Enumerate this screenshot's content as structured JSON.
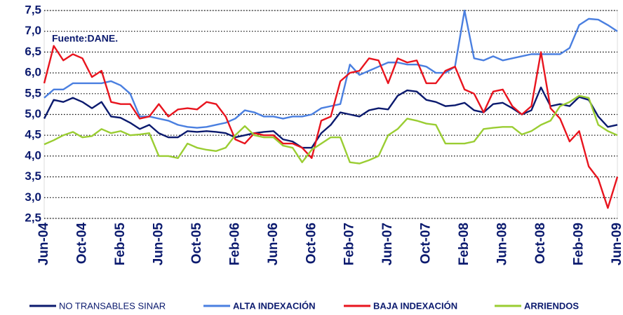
{
  "chart_data": {
    "type": "line",
    "annotation": "Fuente:DANE.",
    "categories": [
      "Jun-04",
      null,
      null,
      null,
      "Oct-04",
      null,
      null,
      null,
      "Feb-05",
      null,
      null,
      null,
      "Jun-05",
      null,
      null,
      null,
      "Oct-05",
      null,
      null,
      null,
      "Feb-06",
      null,
      null,
      null,
      "Jun-06",
      null,
      null,
      null,
      "Oct-06",
      null,
      null,
      null,
      "Feb-07",
      null,
      null,
      null,
      "Jun-07",
      null,
      null,
      null,
      "Oct-07",
      null,
      null,
      null,
      "Feb-08",
      null,
      null,
      null,
      "Jun-08",
      null,
      null,
      null,
      "Oct-08",
      null,
      null,
      null,
      "Feb-09",
      null,
      null,
      null,
      "Jun-09"
    ],
    "series": [
      {
        "name": "NO TRANSABLES SINAR",
        "color": "#0b1a6e",
        "values": [
          4.9,
          5.35,
          5.3,
          5.4,
          5.3,
          5.15,
          5.3,
          4.95,
          4.92,
          4.8,
          4.65,
          4.75,
          4.55,
          4.45,
          4.45,
          4.6,
          4.58,
          4.6,
          4.58,
          4.55,
          4.45,
          4.5,
          4.55,
          4.58,
          4.6,
          4.4,
          4.35,
          4.2,
          4.2,
          4.55,
          4.75,
          5.05,
          5.0,
          4.95,
          5.1,
          5.15,
          5.12,
          5.45,
          5.58,
          5.55,
          5.35,
          5.3,
          5.2,
          5.22,
          5.28,
          5.1,
          5.05,
          5.25,
          5.28,
          5.15,
          5.0,
          5.1,
          5.65,
          5.2,
          5.25,
          5.2,
          5.42,
          5.35,
          4.95,
          4.7,
          4.75
        ]
      },
      {
        "name": "ALTA INDEXACIÓN",
        "color": "#4a7fe0",
        "values": [
          5.4,
          5.6,
          5.6,
          5.75,
          5.75,
          5.75,
          5.75,
          5.8,
          5.7,
          5.5,
          4.95,
          4.95,
          4.9,
          4.85,
          4.75,
          4.7,
          4.68,
          4.7,
          4.75,
          4.8,
          4.9,
          5.1,
          5.05,
          4.95,
          4.95,
          4.9,
          4.95,
          4.95,
          5.0,
          5.15,
          5.2,
          5.25,
          6.2,
          5.95,
          6.05,
          6.15,
          6.25,
          6.25,
          6.2,
          6.2,
          6.15,
          6.0,
          6.0,
          6.15,
          7.5,
          6.35,
          6.3,
          6.4,
          6.3,
          6.35,
          6.4,
          6.45,
          6.45,
          6.45,
          6.45,
          6.6,
          7.15,
          7.3,
          7.28,
          7.15,
          7.0
        ]
      },
      {
        "name": "BAJA INDEXACIÓN",
        "color": "#e8141e",
        "values": [
          5.75,
          6.65,
          6.3,
          6.45,
          6.35,
          5.9,
          6.05,
          5.3,
          5.25,
          5.25,
          4.9,
          4.95,
          5.25,
          4.95,
          5.12,
          5.15,
          5.12,
          5.3,
          5.25,
          4.95,
          4.4,
          4.3,
          4.55,
          4.5,
          4.5,
          4.3,
          4.3,
          4.2,
          3.95,
          4.85,
          4.95,
          5.8,
          6.0,
          6.05,
          6.35,
          6.3,
          5.75,
          6.35,
          6.25,
          6.3,
          5.75,
          5.75,
          6.05,
          6.15,
          5.6,
          5.5,
          5.05,
          5.55,
          5.6,
          5.2,
          5.0,
          5.2,
          6.5,
          5.15,
          4.9,
          4.35,
          4.6,
          3.75,
          3.45,
          2.75,
          3.5
        ]
      },
      {
        "name": "ARRIENDOS",
        "color": "#9acd32",
        "values": [
          4.28,
          4.38,
          4.5,
          4.58,
          4.45,
          4.48,
          4.65,
          4.55,
          4.6,
          4.5,
          4.52,
          4.55,
          4.0,
          4.0,
          3.95,
          4.3,
          4.2,
          4.15,
          4.12,
          4.2,
          4.5,
          4.72,
          4.5,
          4.45,
          4.45,
          4.25,
          4.2,
          3.85,
          4.15,
          4.3,
          4.45,
          4.45,
          3.85,
          3.82,
          3.9,
          4.0,
          4.5,
          4.65,
          4.9,
          4.85,
          4.78,
          4.75,
          4.3,
          4.3,
          4.3,
          4.35,
          4.65,
          4.68,
          4.7,
          4.7,
          4.52,
          4.6,
          4.75,
          4.85,
          5.2,
          5.3,
          5.45,
          5.4,
          4.75,
          4.6,
          4.5
        ]
      }
    ],
    "ylim": [
      2.5,
      7.5
    ],
    "yticks": [
      {
        "value": 2.5,
        "label": "2,5"
      },
      {
        "value": 3,
        "label": "3,0"
      },
      {
        "value": 3.5,
        "label": "3,5"
      },
      {
        "value": 4,
        "label": "4,0"
      },
      {
        "value": 4.5,
        "label": "4,5"
      },
      {
        "value": 5,
        "label": "5,0"
      },
      {
        "value": 5.5,
        "label": "5,5"
      },
      {
        "value": 6,
        "label": "6,0"
      },
      {
        "value": 6.5,
        "label": "6,5"
      },
      {
        "value": 7,
        "label": "7,0"
      },
      {
        "value": 7.5,
        "label": "7,5"
      }
    ],
    "grid": true,
    "legend": "bottom"
  }
}
